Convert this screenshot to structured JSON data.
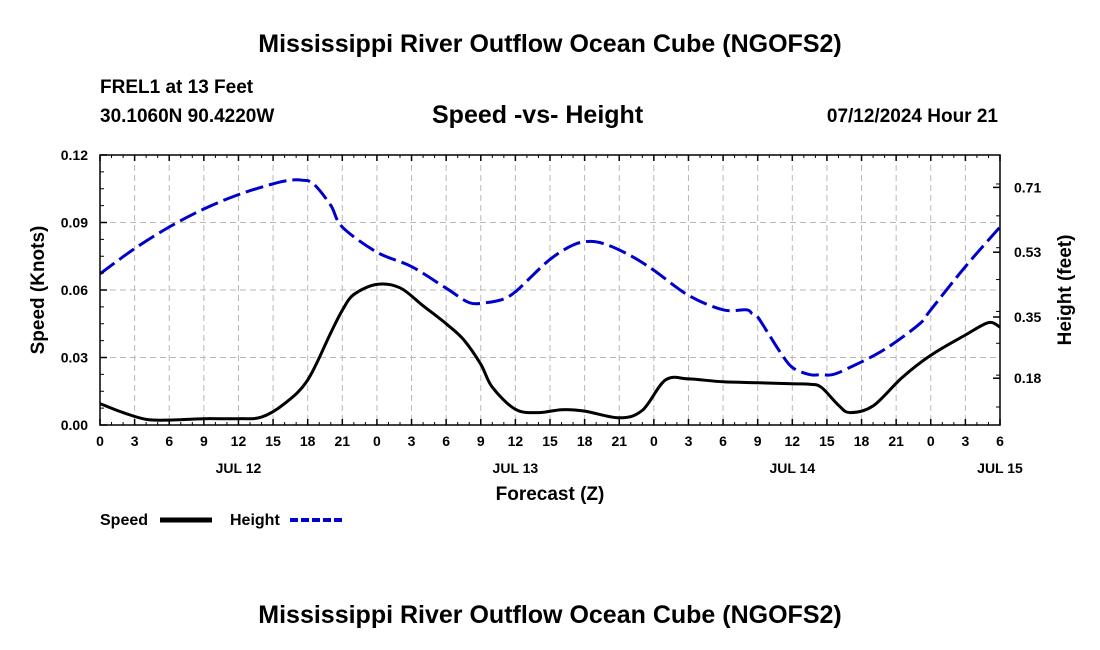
{
  "header": {
    "title": "Mississippi River Outflow Ocean Cube (NGOFS2)",
    "station": "FREL1 at 13 Feet",
    "coords": "30.1060N  90.4220W",
    "chart_title": "Speed -vs- Height",
    "datetime": "07/12/2024 Hour 21"
  },
  "footer": {
    "title": "Mississippi River Outflow Ocean Cube (NGOFS2)"
  },
  "colors": {
    "speed": "#000000",
    "height": "#0000cc",
    "grid": "#b8b8b8"
  },
  "chart_data": {
    "type": "line",
    "title": "Speed -vs- Height",
    "xlabel": "Forecast (Z)",
    "ylabel": "Speed (Knots)",
    "y2label": "Height (feet)",
    "x_hours_range": [
      0,
      78
    ],
    "xtick_step_hours": 3,
    "xtick_labels": [
      "0",
      "3",
      "6",
      "9",
      "12",
      "15",
      "18",
      "21",
      "0",
      "3",
      "6",
      "9",
      "12",
      "15",
      "18",
      "21",
      "0",
      "3",
      "6",
      "9",
      "12",
      "15",
      "18",
      "21",
      "0",
      "3",
      "6"
    ],
    "date_labels": [
      {
        "hour": 12,
        "text": "JUL 12"
      },
      {
        "hour": 36,
        "text": "JUL 13"
      },
      {
        "hour": 60,
        "text": "JUL 14"
      },
      {
        "hour": 78,
        "text": "JUL 15"
      }
    ],
    "ylim": [
      0,
      0.12
    ],
    "yticks": [
      0,
      0.03,
      0.06,
      0.09,
      0.12
    ],
    "ytick_labels": [
      "0.00",
      "0.03",
      "0.06",
      "0.09",
      "0.12"
    ],
    "y2lim": [
      0.05,
      0.8
    ],
    "y2ticks": [
      0.18,
      0.35,
      0.53,
      0.71
    ],
    "y2tick_labels": [
      "0.18",
      "0.35",
      "0.53",
      "0.71"
    ],
    "grid": true,
    "series": [
      {
        "name": "Speed",
        "axis": "left",
        "style": "solid",
        "x": [
          0,
          2,
          4,
          6,
          9,
          12,
          14,
          16,
          18,
          20,
          21,
          22,
          24,
          26,
          28,
          30,
          31.5,
          33,
          34,
          36,
          38,
          40,
          42,
          45,
          47,
          49,
          51,
          54,
          57,
          60,
          61.5,
          62.5,
          64,
          65,
          67,
          69.5,
          72,
          75,
          77,
          78
        ],
        "values": [
          0.0095,
          0.0055,
          0.0025,
          0.0022,
          0.0028,
          0.0028,
          0.0035,
          0.0095,
          0.02,
          0.041,
          0.051,
          0.058,
          0.0625,
          0.061,
          0.053,
          0.045,
          0.038,
          0.027,
          0.0168,
          0.007,
          0.0055,
          0.0068,
          0.0062,
          0.0032,
          0.0065,
          0.02,
          0.0205,
          0.0192,
          0.0188,
          0.0183,
          0.0181,
          0.0168,
          0.0088,
          0.0055,
          0.0085,
          0.021,
          0.031,
          0.04,
          0.0455,
          0.0435
        ]
      },
      {
        "name": "Height",
        "axis": "right",
        "style": "dashed",
        "x": [
          0,
          3,
          6,
          9,
          12,
          15,
          16.5,
          17.5,
          18.5,
          20,
          21,
          24,
          27,
          30,
          32,
          33.5,
          35,
          36,
          37,
          39,
          41,
          42.5,
          44,
          46,
          48,
          51,
          54,
          56,
          56.5,
          57,
          58,
          59,
          60,
          61.5,
          62.5,
          63.5,
          65,
          68,
          71,
          72,
          75,
          78
        ],
        "values": [
          0.47,
          0.54,
          0.6,
          0.65,
          0.69,
          0.72,
          0.73,
          0.73,
          0.72,
          0.66,
          0.6,
          0.53,
          0.49,
          0.43,
          0.39,
          0.39,
          0.4,
          0.42,
          0.45,
          0.51,
          0.55,
          0.56,
          0.55,
          0.52,
          0.48,
          0.41,
          0.37,
          0.37,
          0.36,
          0.35,
          0.3,
          0.25,
          0.21,
          0.19,
          0.19,
          0.19,
          0.21,
          0.26,
          0.33,
          0.37,
          0.49,
          0.6
        ]
      }
    ]
  }
}
